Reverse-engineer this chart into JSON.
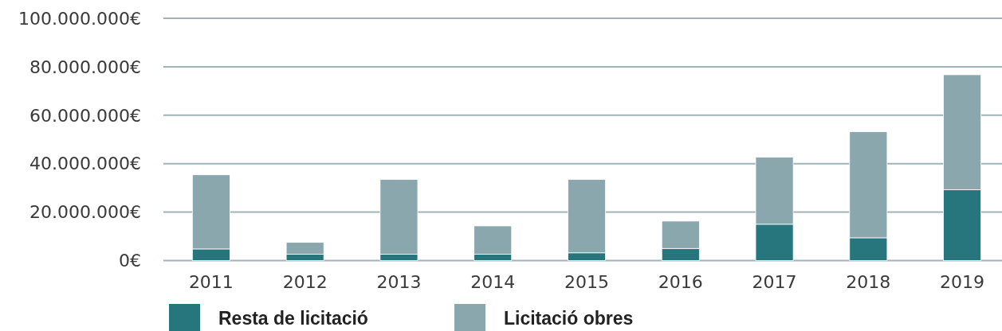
{
  "chart_data": {
    "type": "bar",
    "categories": [
      "2011",
      "2012",
      "2013",
      "2014",
      "2015",
      "2016",
      "2017",
      "2018",
      "2019"
    ],
    "series": [
      {
        "name": "Resta de licitació",
        "color": "#27767e",
        "values": [
          4800000,
          2600000,
          2600000,
          2600000,
          3200000,
          5000000,
          15000000,
          9400000,
          29200000
        ]
      },
      {
        "name": "Licitació obres",
        "color": "#8aa7ae",
        "values": [
          30600000,
          4900000,
          30900000,
          11700000,
          30300000,
          11300000,
          27700000,
          43800000,
          47500000
        ]
      }
    ],
    "stacked": true,
    "ylim": [
      0,
      100000000
    ],
    "yticks": [
      {
        "value": 0,
        "label": "0€"
      },
      {
        "value": 20000000,
        "label": "20.000.000€"
      },
      {
        "value": 40000000,
        "label": "40.000.000€"
      },
      {
        "value": 60000000,
        "label": "60.000.000€"
      },
      {
        "value": 80000000,
        "label": "80.000.000€"
      },
      {
        "value": 100000000,
        "label": "100.000.000€"
      }
    ],
    "grid": "y",
    "legend": "bottom"
  }
}
